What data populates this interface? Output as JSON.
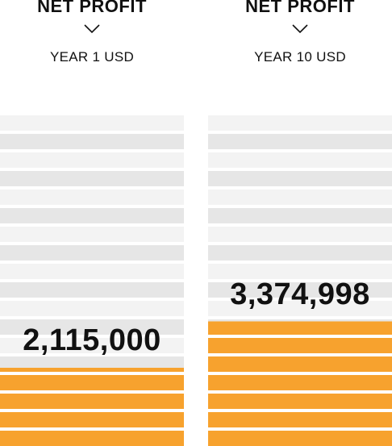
{
  "chart_data": {
    "type": "bar",
    "title": "",
    "xlabel": "",
    "ylabel": "",
    "unit": "USD",
    "categories": [
      "YEAR 1 USD",
      "YEAR 10 USD"
    ],
    "metric": "NET PROFIT",
    "values": [
      2115000,
      3374998
    ],
    "value_labels": [
      "2,115,000",
      "3,374,998"
    ],
    "ylim": [
      0,
      9000000
    ],
    "grid": false,
    "legend": "none",
    "colors": {
      "fill": "#F7A22E",
      "stripe_light": "#F3F3F3",
      "stripe_dark": "#E6E6E6",
      "text": "#111111"
    }
  },
  "columns": [
    {
      "title": "NET PROFIT",
      "period": "YEAR 1 USD",
      "chevron_icon": "chevron-down-icon"
    },
    {
      "title": "NET PROFIT",
      "period": "YEAR 10 USD",
      "chevron_icon": "chevron-down-icon"
    }
  ]
}
